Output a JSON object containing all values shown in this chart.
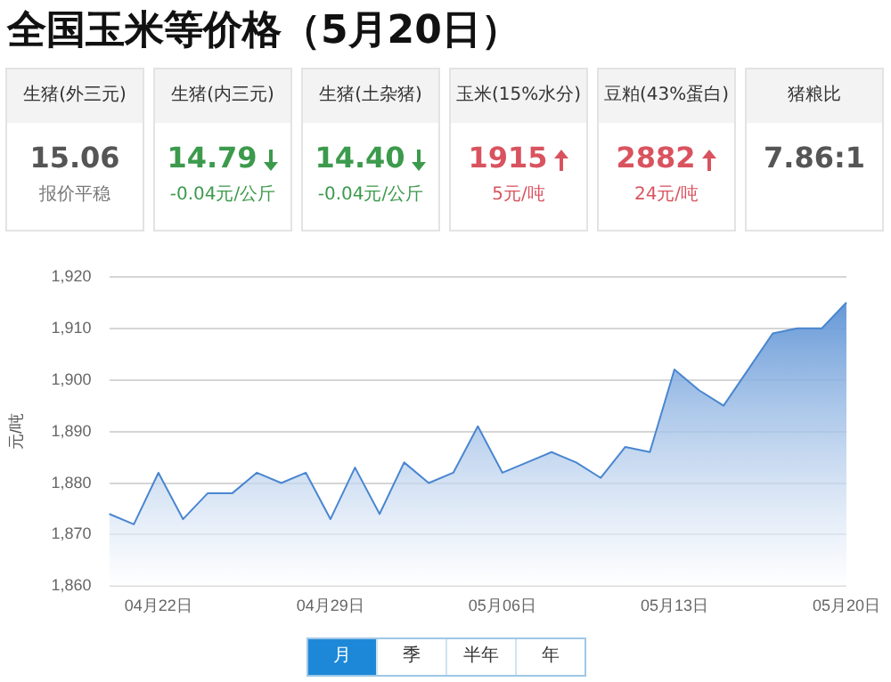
{
  "chart_data": [
    {
      "type": "other",
      "title": "全国玉米等价格（5月20日）",
      "annotations": [
        "生猪(外三元)",
        "生猪(内三元)",
        "生猪(土杂猪)",
        "玉米(15%水分)",
        "豆粕(43%蛋白)",
        "猪粮比",
        "15.06",
        "14.79",
        "14.40",
        "1915",
        "2882",
        "7.86:1",
        "报价平稳",
        "-0.04元/公斤",
        "-0.04元/公斤",
        "5元/吨",
        "24元/吨"
      ],
      "colors": [
        "#555555",
        "#3c9a4c",
        "#3c9a4c",
        "#d9535f",
        "#d9535f",
        "#555555"
      ]
    },
    {
      "type": "area",
      "ylabel": "元/吨",
      "color": "#4a86d0",
      "categories": [
        null,
        null,
        "04月22日",
        null,
        null,
        null,
        null,
        null,
        null,
        "04月29日",
        null,
        null,
        null,
        null,
        null,
        null,
        "05月06日",
        null,
        null,
        null,
        null,
        null,
        null,
        "05月13日",
        null,
        null,
        null,
        null,
        null,
        null,
        "05月20日"
      ],
      "values": [
        1874,
        1872,
        1882,
        1873,
        1878,
        1878,
        1882,
        1880,
        1882,
        1873,
        1883,
        1874,
        1884,
        1880,
        1882,
        1891,
        1882,
        1884,
        1886,
        1884,
        1881,
        1887,
        1886,
        1902,
        1898,
        1895,
        1902,
        1909,
        1910,
        1910,
        1915
      ],
      "ylim": [
        1860,
        1920
      ],
      "yticks": [
        {
          "value": 1860,
          "label": "1,860"
        },
        {
          "value": 1870,
          "label": "1,870"
        },
        {
          "value": 1880,
          "label": "1,880"
        },
        {
          "value": 1890,
          "label": "1,890"
        },
        {
          "value": 1900,
          "label": "1,900"
        },
        {
          "value": 1910,
          "label": "1,910"
        },
        {
          "value": 1920,
          "label": "1,920"
        }
      ],
      "grid": "y",
      "legend": false,
      "annotations": [
        "月",
        "季",
        "半年",
        "年"
      ]
    }
  ]
}
